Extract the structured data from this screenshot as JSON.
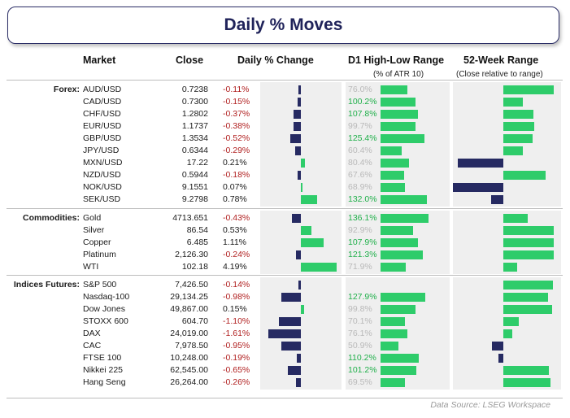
{
  "title": "Daily % Moves",
  "headers": {
    "market": "Market",
    "close": "Close",
    "change": "Daily % Change",
    "atr": "D1 High-Low Range",
    "atr_sub": "(% of ATR 10)",
    "range": "52-Week Range",
    "range_sub": "(Close relative to range)"
  },
  "source": "Data Source: LSEG Workspace",
  "colors": {
    "negative_bar": "#262a62",
    "positive_bar": "#2ecc6a",
    "negative_text": "#b01e1e",
    "high_atr_text": "#21b04b",
    "low_atr_text": "#b9b9b9"
  },
  "chart_data": {
    "type": "table",
    "sections": [
      {
        "name": "Forex:",
        "rows": [
          {
            "market": "AUD/USD",
            "close": "0.7238",
            "change": "-0.11%",
            "atr": "76.0%",
            "range_pos": 1.0
          },
          {
            "market": "CAD/USD",
            "close": "0.7300",
            "change": "-0.15%",
            "atr": "100.2%",
            "range_pos": 0.38
          },
          {
            "market": "CHF/USD",
            "close": "1.2802",
            "change": "-0.37%",
            "atr": "107.8%",
            "range_pos": 0.6
          },
          {
            "market": "EUR/USD",
            "close": "1.1737",
            "change": "-0.38%",
            "atr": "99.7%",
            "range_pos": 0.62
          },
          {
            "market": "GBP/USD",
            "close": "1.3534",
            "change": "-0.52%",
            "atr": "125.4%",
            "range_pos": 0.58
          },
          {
            "market": "JPY/USD",
            "close": "0.6344",
            "change": "-0.29%",
            "atr": "60.4%",
            "range_pos": 0.38
          },
          {
            "market": "MXN/USD",
            "close": "17.22",
            "change": "0.21%",
            "atr": "80.4%",
            "range_pos": -0.9
          },
          {
            "market": "NZD/USD",
            "close": "0.5944",
            "change": "-0.18%",
            "atr": "67.6%",
            "range_pos": 0.84
          },
          {
            "market": "NOK/USD",
            "close": "9.1551",
            "change": "0.07%",
            "atr": "68.9%",
            "range_pos": -1.0
          },
          {
            "market": "SEK/USD",
            "close": "9.2798",
            "change": "0.78%",
            "atr": "132.0%",
            "range_pos": -0.24
          }
        ]
      },
      {
        "name": "Commodities:",
        "rows": [
          {
            "market": "Gold",
            "close": "4713.651",
            "change": "-0.43%",
            "atr": "136.1%",
            "range_pos": 0.48
          },
          {
            "market": "Silver",
            "close": "86.54",
            "change": "0.53%",
            "atr": "92.9%",
            "range_pos": 1.0
          },
          {
            "market": "Copper",
            "close": "6.485",
            "change": "1.11%",
            "atr": "107.9%",
            "range_pos": 1.0
          },
          {
            "market": "Platinum",
            "close": "2,126.30",
            "change": "-0.24%",
            "atr": "121.3%",
            "range_pos": 1.0
          },
          {
            "market": "WTI",
            "close": "102.18",
            "change": "4.19%",
            "atr": "71.9%",
            "range_pos": 0.28
          }
        ]
      },
      {
        "name": "Indices Futures:",
        "rows": [
          {
            "market": "S&P 500",
            "close": "7,426.50",
            "change": "-0.14%",
            "atr": "",
            "range_pos": 0.98
          },
          {
            "market": "Nasdaq-100",
            "close": "29,134.25",
            "change": "-0.98%",
            "atr": "127.9%",
            "range_pos": 0.88
          },
          {
            "market": "Dow Jones",
            "close": "49,867.00",
            "change": "0.15%",
            "atr": "99.8%",
            "range_pos": 0.96
          },
          {
            "market": "STOXX 600",
            "close": "604.70",
            "change": "-1.10%",
            "atr": "70.1%",
            "range_pos": 0.3
          },
          {
            "market": "DAX",
            "close": "24,019.00",
            "change": "-1.61%",
            "atr": "76.1%",
            "range_pos": 0.18
          },
          {
            "market": "CAC",
            "close": "7,978.50",
            "change": "-0.95%",
            "atr": "50.9%",
            "range_pos": -0.22
          },
          {
            "market": "FTSE 100",
            "close": "10,248.00",
            "change": "-0.19%",
            "atr": "110.2%",
            "range_pos": -0.1
          },
          {
            "market": "Nikkei 225",
            "close": "62,545.00",
            "change": "-0.65%",
            "atr": "101.2%",
            "range_pos": 0.9
          },
          {
            "market": "Hang Seng",
            "close": "26,264.00",
            "change": "-0.26%",
            "atr": "69.5%",
            "range_pos": 0.94
          }
        ]
      }
    ]
  }
}
